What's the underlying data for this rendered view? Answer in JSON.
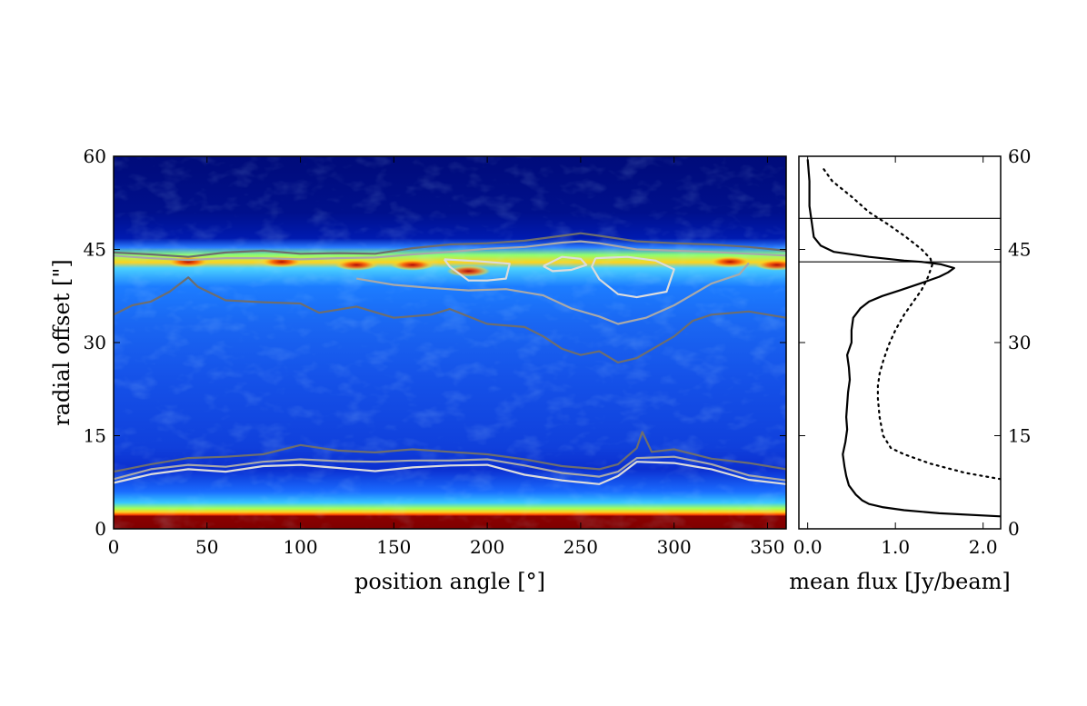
{
  "chart_data": [
    {
      "type": "heatmap",
      "xlabel": "position angle [°]",
      "ylabel": "radial offset [\"]",
      "xlim": [
        0,
        360
      ],
      "ylim": [
        0,
        60
      ],
      "x_ticks": [
        0,
        50,
        100,
        150,
        200,
        250,
        300,
        350
      ],
      "y_ticks": [
        0,
        15,
        30,
        45,
        60
      ],
      "colormap": "jet",
      "ring_band": {
        "center_radius": 42.5,
        "description_values": {
          "radial_range": [
            37,
            46
          ]
        }
      },
      "inner_core_radius": [
        0,
        2
      ],
      "high_intensity_clumps": [
        {
          "x": 40,
          "y": 43
        },
        {
          "x": 90,
          "y": 43
        },
        {
          "x": 130,
          "y": 42.5
        },
        {
          "x": 160,
          "y": 42.5
        },
        {
          "x": 190,
          "y": 41.5
        },
        {
          "x": 330,
          "y": 43
        },
        {
          "x": 355,
          "y": 42.5
        }
      ],
      "contours": [
        {
          "level": "outer",
          "color": "#6e6e6e",
          "points": [
            [
              0,
              44.5
            ],
            [
              20,
              44.2
            ],
            [
              40,
              43.8
            ],
            [
              60,
              44.5
            ],
            [
              80,
              44.8
            ],
            [
              100,
              44.3
            ],
            [
              120,
              44.4
            ],
            [
              140,
              44.3
            ],
            [
              160,
              45.2
            ],
            [
              180,
              45.8
            ],
            [
              200,
              46
            ],
            [
              220,
              46.4
            ],
            [
              240,
              47.2
            ],
            [
              250,
              47.6
            ],
            [
              260,
              47.2
            ],
            [
              280,
              46.3
            ],
            [
              300,
              46
            ],
            [
              320,
              45.8
            ],
            [
              340,
              45.4
            ],
            [
              360,
              44.8
            ]
          ]
        },
        {
          "level": "outer-inner-edge",
          "color": "#6e6e6e",
          "points": [
            [
              0,
              34.5
            ],
            [
              10,
              36
            ],
            [
              20,
              36.6
            ],
            [
              30,
              38.2
            ],
            [
              40,
              40.5
            ],
            [
              45,
              39
            ],
            [
              60,
              36.8
            ],
            [
              80,
              36.5
            ],
            [
              100,
              36.3
            ],
            [
              110,
              34.8
            ],
            [
              130,
              35.8
            ],
            [
              150,
              34
            ],
            [
              170,
              34.5
            ],
            [
              180,
              35.4
            ],
            [
              200,
              33
            ],
            [
              220,
              32.5
            ],
            [
              230,
              31
            ],
            [
              240,
              29
            ],
            [
              250,
              28
            ],
            [
              260,
              28.6
            ],
            [
              270,
              26.8
            ],
            [
              280,
              27.5
            ],
            [
              300,
              31
            ],
            [
              310,
              33.5
            ],
            [
              320,
              34.5
            ],
            [
              340,
              35
            ],
            [
              360,
              34
            ]
          ]
        },
        {
          "level": "middle",
          "color": "#a9a9a9",
          "points": [
            [
              0,
              44
            ],
            [
              20,
              43.6
            ],
            [
              40,
              43.3
            ],
            [
              60,
              43.6
            ],
            [
              80,
              43.6
            ],
            [
              100,
              43.4
            ],
            [
              120,
              43.6
            ],
            [
              140,
              43.7
            ],
            [
              160,
              44.2
            ],
            [
              180,
              44.6
            ],
            [
              200,
              45.1
            ],
            [
              220,
              45.4
            ],
            [
              240,
              46.1
            ],
            [
              250,
              46.3
            ],
            [
              260,
              46
            ],
            [
              280,
              45
            ],
            [
              300,
              44.8
            ],
            [
              320,
              44.6
            ],
            [
              340,
              44.3
            ],
            [
              360,
              44
            ]
          ]
        },
        {
          "level": "middle-inner-edge",
          "color": "#a9a9a9",
          "points": [
            [
              130,
              40.3
            ],
            [
              150,
              39.3
            ],
            [
              170,
              38.8
            ],
            [
              190,
              38.4
            ],
            [
              210,
              38.6
            ],
            [
              230,
              37.6
            ],
            [
              245,
              35.5
            ],
            [
              260,
              34.2
            ],
            [
              270,
              33
            ],
            [
              285,
              34
            ],
            [
              300,
              36
            ],
            [
              320,
              39.5
            ],
            [
              335,
              41
            ],
            [
              340,
              42.8
            ]
          ]
        },
        {
          "level": "high",
          "color": "#dcdcdc",
          "points": [
            [
              230,
              42.3
            ],
            [
              240,
              43.8
            ],
            [
              250,
              43.5
            ],
            [
              253,
              42.5
            ],
            [
              245,
              41.7
            ],
            [
              235,
              41.5
            ],
            [
              230,
              42.3
            ]
          ]
        },
        {
          "level": "high",
          "color": "#dcdcdc",
          "points": [
            [
              258,
              43.6
            ],
            [
              275,
              43.8
            ],
            [
              290,
              43.2
            ],
            [
              300,
              41.8
            ],
            [
              296,
              38.2
            ],
            [
              280,
              37.3
            ],
            [
              270,
              37.8
            ],
            [
              260,
              40.2
            ],
            [
              256,
              42.2
            ],
            [
              258,
              43.6
            ]
          ]
        },
        {
          "level": "high",
          "color": "#dcdcdc",
          "points": [
            [
              177,
              43.4
            ],
            [
              195,
              43.1
            ],
            [
              212,
              42.7
            ],
            [
              210,
              40.3
            ],
            [
              200,
              40
            ],
            [
              190,
              40
            ],
            [
              180,
              42.2
            ],
            [
              177,
              43.4
            ]
          ]
        },
        {
          "level": "inner-outer",
          "color": "#6e6e6e",
          "points": [
            [
              0,
              9.2
            ],
            [
              20,
              10.4
            ],
            [
              40,
              11.4
            ],
            [
              60,
              11.6
            ],
            [
              80,
              12
            ],
            [
              100,
              13.5
            ],
            [
              120,
              12.6
            ],
            [
              140,
              12.3
            ],
            [
              160,
              12.8
            ],
            [
              180,
              12.4
            ],
            [
              200,
              12
            ],
            [
              220,
              11.2
            ],
            [
              240,
              10.1
            ],
            [
              260,
              9.6
            ],
            [
              270,
              10.4
            ],
            [
              280,
              13
            ],
            [
              283,
              15.6
            ],
            [
              288,
              12.4
            ],
            [
              300,
              12.8
            ],
            [
              320,
              11.3
            ],
            [
              340,
              10.6
            ],
            [
              360,
              9.6
            ]
          ]
        },
        {
          "level": "inner-middle",
          "color": "#a9a9a9",
          "points": [
            [
              0,
              8
            ],
            [
              20,
              9.6
            ],
            [
              40,
              10.3
            ],
            [
              60,
              10
            ],
            [
              80,
              10.8
            ],
            [
              100,
              11.2
            ],
            [
              120,
              10.9
            ],
            [
              140,
              10.8
            ],
            [
              160,
              11
            ],
            [
              180,
              11
            ],
            [
              200,
              11.2
            ],
            [
              220,
              10.2
            ],
            [
              240,
              9
            ],
            [
              260,
              8.4
            ],
            [
              270,
              9.2
            ],
            [
              280,
              11.4
            ],
            [
              300,
              11.6
            ],
            [
              320,
              10.4
            ],
            [
              340,
              8.6
            ],
            [
              360,
              7.8
            ]
          ]
        },
        {
          "level": "inner-high",
          "color": "#dcdcdc",
          "points": [
            [
              0,
              7.4
            ],
            [
              20,
              8.8
            ],
            [
              40,
              9.6
            ],
            [
              60,
              9.2
            ],
            [
              80,
              10.1
            ],
            [
              100,
              10.3
            ],
            [
              120,
              9.8
            ],
            [
              140,
              9.3
            ],
            [
              160,
              9.9
            ],
            [
              180,
              10.2
            ],
            [
              200,
              10.3
            ],
            [
              220,
              8.7
            ],
            [
              240,
              7.8
            ],
            [
              260,
              7.2
            ],
            [
              270,
              8.5
            ],
            [
              280,
              10.8
            ],
            [
              300,
              10.6
            ],
            [
              320,
              9.6
            ],
            [
              340,
              7.9
            ],
            [
              360,
              7.2
            ]
          ]
        }
      ]
    },
    {
      "type": "line",
      "xlabel": "mean flux [Jy/beam]",
      "ylabel": "",
      "xlim": [
        -0.1,
        2.2
      ],
      "ylim": [
        0,
        60
      ],
      "x_ticks": [
        "0.0",
        "1.0",
        "2.0"
      ],
      "y_ticks": [
        0,
        15,
        30,
        45,
        60
      ],
      "y_ticks_side": "right",
      "hlines": [
        50,
        43
      ],
      "series": [
        {
          "style": "solid",
          "x": [
            2.2,
            1.5,
            1.1,
            0.85,
            0.7,
            0.62,
            0.55,
            0.47,
            0.44,
            0.42,
            0.4,
            0.43,
            0.45,
            0.44,
            0.45,
            0.46,
            0.48,
            0.47,
            0.45,
            0.5,
            0.5,
            0.52,
            0.6,
            0.7,
            0.85,
            1.05,
            1.3,
            1.5,
            1.6,
            1.67,
            1.52,
            1.3,
            1.1,
            0.7,
            0.3,
            0.15,
            0.07,
            0.05,
            0.02,
            0.02,
            0.0
          ],
          "y": [
            2,
            2.5,
            3,
            3.5,
            4,
            4.6,
            5.5,
            7,
            8.5,
            10,
            12,
            14,
            16,
            18,
            20,
            22,
            24,
            26,
            28,
            30,
            32,
            34,
            35.5,
            36.6,
            37.5,
            38.4,
            39.6,
            40.6,
            41.3,
            42,
            42.6,
            43,
            43.2,
            43.8,
            44.6,
            45.6,
            47,
            49,
            52,
            56,
            59.5
          ]
        },
        {
          "style": "dotted",
          "x": [
            2.2,
            1.8,
            1.4,
            1.1,
            0.95,
            0.86,
            0.82,
            0.8,
            0.8,
            0.82,
            0.86,
            0.92,
            1.0,
            1.1,
            1.2,
            1.3,
            1.37,
            1.42,
            1.4,
            1.3,
            1.12,
            0.92,
            0.7,
            0.5,
            0.28,
            0.18
          ],
          "y": [
            8,
            9,
            10.5,
            12,
            13,
            15,
            18,
            21,
            23,
            25,
            27,
            29.5,
            32,
            34.5,
            36.5,
            38.5,
            40.5,
            42.5,
            43.5,
            45,
            47,
            49,
            51,
            53.5,
            56,
            58
          ]
        }
      ]
    }
  ]
}
